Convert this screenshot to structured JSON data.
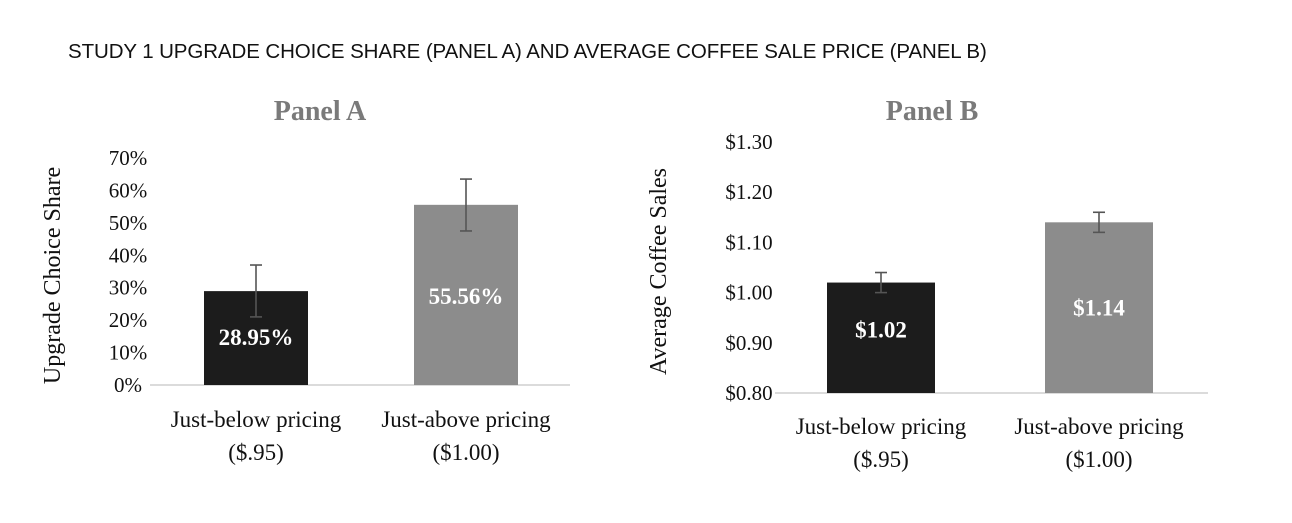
{
  "figure_title": "STUDY 1 UPGRADE CHOICE SHARE (PANEL A) AND AVERAGE COFFEE SALE PRICE (PANEL B)",
  "colors": {
    "bar_below": "#1c1c1c",
    "bar_above": "#8c8c8c",
    "panel_title": "#7a7a7a",
    "axis_text": "#111111",
    "error_bar": "#555555",
    "baseline": "#cfcfcf",
    "data_label": "#ffffff"
  },
  "chart_data": [
    {
      "type": "bar",
      "title": "Panel A",
      "ylabel": "Upgrade Choice Share",
      "xlabel": "",
      "categories": [
        [
          "Just-below pricing",
          "($.95)"
        ],
        [
          "Just-above pricing",
          "($1.00)"
        ]
      ],
      "values": [
        28.95,
        55.56
      ],
      "data_labels": [
        "28.95%",
        "55.56%"
      ],
      "error_bars": [
        {
          "low": 21,
          "high": 37
        },
        {
          "low": 47.5,
          "high": 63.5
        }
      ],
      "ylim": [
        0,
        70
      ],
      "yticks": [
        0,
        10,
        20,
        30,
        40,
        50,
        60,
        70
      ],
      "ytick_labels": [
        "0%",
        "10%",
        "20%",
        "30%",
        "40%",
        "50%",
        "60%",
        "70%"
      ],
      "grid": false,
      "legend": "none"
    },
    {
      "type": "bar",
      "title": "Panel B",
      "ylabel": "Average Coffee Sales",
      "xlabel": "",
      "categories": [
        [
          "Just-below pricing",
          "($.95)"
        ],
        [
          "Just-above pricing",
          "($1.00)"
        ]
      ],
      "values": [
        1.02,
        1.14
      ],
      "data_labels": [
        "$1.02",
        "$1.14"
      ],
      "error_bars": [
        {
          "low": 1.0,
          "high": 1.04
        },
        {
          "low": 1.12,
          "high": 1.16
        }
      ],
      "ylim": [
        0.8,
        1.3
      ],
      "yticks": [
        0.8,
        0.9,
        1.0,
        1.1,
        1.2,
        1.3
      ],
      "ytick_labels": [
        "$0.80",
        "$0.90",
        "$1.00",
        "$1.10",
        "$1.20",
        "$1.30"
      ],
      "grid": false,
      "legend": "none"
    }
  ]
}
